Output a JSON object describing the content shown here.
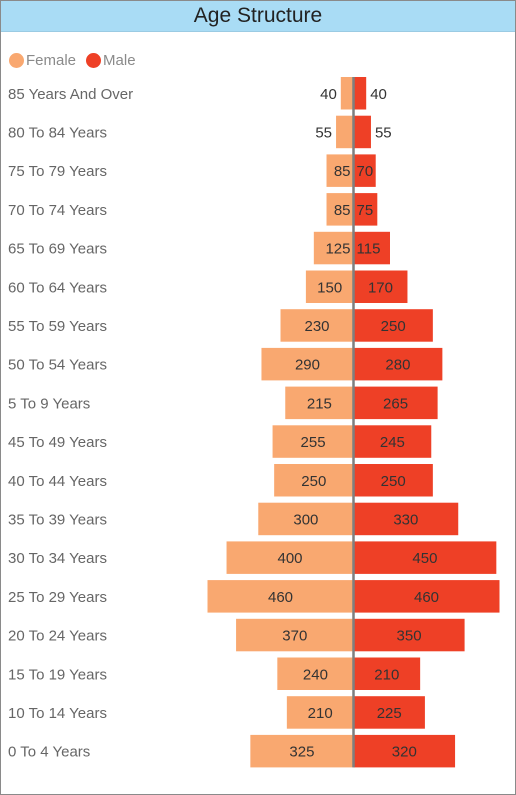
{
  "colors": {
    "female": "#f9a870",
    "male": "#ee4026",
    "axis": "#7f7f7f",
    "label": "#666666",
    "value": "#333333"
  },
  "chart_data": {
    "type": "bar",
    "orientation": "horizontal-butterfly",
    "title": "Age Structure",
    "legend_position": "top-left",
    "categories": [
      "85 Years And Over",
      "80 To 84 Years",
      "75 To 79 Years",
      "70 To 74 Years",
      "65 To 69 Years",
      "60 To 64 Years",
      "55 To 59 Years",
      "50 To 54 Years",
      "5 To 9 Years",
      "45 To 49 Years",
      "40 To 44 Years",
      "35 To 39 Years",
      "30 To 34 Years",
      "25 To 29 Years",
      "20 To 24 Years",
      "15 To 19 Years",
      "10 To 14 Years",
      "0 To 4 Years"
    ],
    "series": [
      {
        "name": "Female",
        "values": [
          40,
          55,
          85,
          85,
          125,
          150,
          230,
          290,
          215,
          255,
          250,
          300,
          400,
          460,
          370,
          240,
          210,
          325
        ]
      },
      {
        "name": "Male",
        "values": [
          40,
          55,
          70,
          75,
          115,
          170,
          250,
          280,
          265,
          245,
          250,
          330,
          450,
          460,
          350,
          210,
          225,
          320
        ]
      }
    ],
    "xlim": [
      0,
      460
    ],
    "grid": false
  }
}
